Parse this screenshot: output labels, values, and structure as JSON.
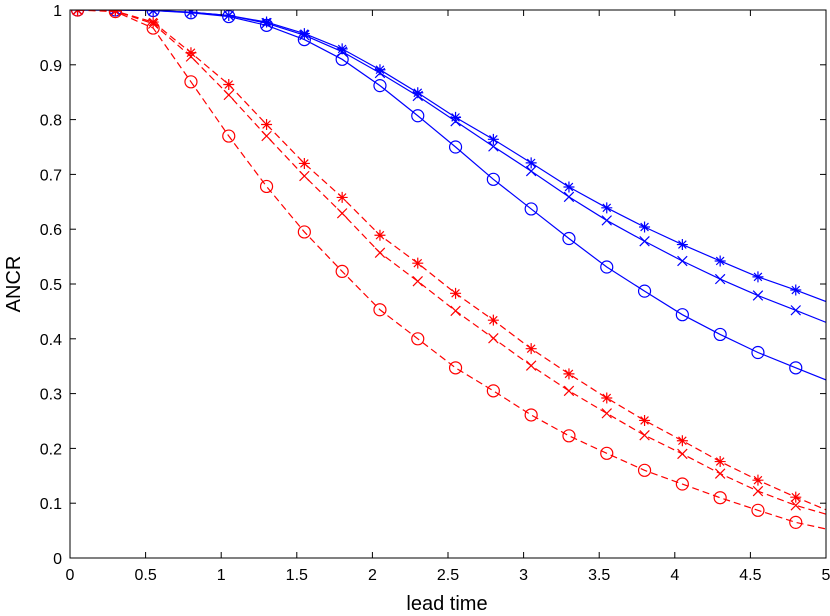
{
  "chart_data": {
    "type": "line",
    "title": "",
    "xlabel": "lead time",
    "ylabel": "ANCR",
    "xlim": [
      0,
      5
    ],
    "ylim": [
      0,
      1
    ],
    "xticks": [
      0,
      0.5,
      1,
      1.5,
      2,
      2.5,
      3,
      3.5,
      4,
      4.5,
      5
    ],
    "yticks": [
      0,
      0.1,
      0.2,
      0.3,
      0.4,
      0.5,
      0.6,
      0.7,
      0.8,
      0.9,
      1
    ],
    "xtick_labels": [
      "0",
      "0.5",
      "1",
      "1.5",
      "2",
      "2.5",
      "3",
      "3.5",
      "4",
      "4.5",
      "5"
    ],
    "ytick_labels": [
      "0",
      "0.1",
      "0.2",
      "0.3",
      "0.4",
      "0.5",
      "0.6",
      "0.7",
      "0.8",
      "0.9",
      "1"
    ],
    "grid": false,
    "legend": "none",
    "series": [
      {
        "color": "#0000ff",
        "line_style": "solid",
        "marker": "circle",
        "x": [
          0.05,
          0.3,
          0.55,
          0.8,
          1.05,
          1.3,
          1.55,
          1.8,
          2.05,
          2.3,
          2.55,
          2.8,
          3.05,
          3.3,
          3.55,
          3.8,
          4.05,
          4.3,
          4.55,
          4.8,
          5.0
        ],
        "values": [
          1.0,
          1.0,
          0.999,
          0.995,
          0.988,
          0.972,
          0.946,
          0.91,
          0.862,
          0.807,
          0.75,
          0.691,
          0.637,
          0.583,
          0.531,
          0.487,
          0.444,
          0.408,
          0.375,
          0.347,
          0.325
        ]
      },
      {
        "color": "#0000ff",
        "line_style": "solid",
        "marker": "x",
        "x": [
          0.05,
          0.3,
          0.55,
          0.8,
          1.05,
          1.3,
          1.55,
          1.8,
          2.05,
          2.3,
          2.55,
          2.8,
          3.05,
          3.3,
          3.55,
          3.8,
          4.05,
          4.3,
          4.55,
          4.8,
          5.0
        ],
        "values": [
          1.0,
          1.0,
          0.999,
          0.996,
          0.99,
          0.976,
          0.954,
          0.924,
          0.885,
          0.843,
          0.797,
          0.751,
          0.706,
          0.659,
          0.616,
          0.578,
          0.542,
          0.509,
          0.479,
          0.452,
          0.43
        ]
      },
      {
        "color": "#0000ff",
        "line_style": "solid",
        "marker": "star",
        "x": [
          0.05,
          0.3,
          0.55,
          0.8,
          1.05,
          1.3,
          1.55,
          1.8,
          2.05,
          2.3,
          2.55,
          2.8,
          3.05,
          3.3,
          3.55,
          3.8,
          4.05,
          4.3,
          4.55,
          4.8,
          5.0
        ],
        "values": [
          1.0,
          1.0,
          0.999,
          0.996,
          0.99,
          0.978,
          0.957,
          0.929,
          0.891,
          0.849,
          0.804,
          0.764,
          0.721,
          0.677,
          0.639,
          0.604,
          0.572,
          0.542,
          0.513,
          0.489,
          0.468
        ]
      },
      {
        "color": "#ff0000",
        "line_style": "dashed",
        "marker": "circle",
        "x": [
          0.05,
          0.3,
          0.55,
          0.8,
          1.05,
          1.3,
          1.55,
          1.8,
          2.05,
          2.3,
          2.55,
          2.8,
          3.05,
          3.3,
          3.55,
          3.8,
          4.05,
          4.3,
          4.55,
          4.8,
          5.0
        ],
        "values": [
          1.0,
          0.997,
          0.967,
          0.869,
          0.77,
          0.678,
          0.595,
          0.523,
          0.453,
          0.4,
          0.347,
          0.305,
          0.261,
          0.223,
          0.191,
          0.16,
          0.135,
          0.11,
          0.087,
          0.065,
          0.053
        ]
      },
      {
        "color": "#ff0000",
        "line_style": "dashed",
        "marker": "x",
        "x": [
          0.05,
          0.3,
          0.55,
          0.8,
          1.05,
          1.3,
          1.55,
          1.8,
          2.05,
          2.3,
          2.55,
          2.8,
          3.05,
          3.3,
          3.55,
          3.8,
          4.05,
          4.3,
          4.55,
          4.8,
          5.0
        ],
        "values": [
          1.0,
          0.998,
          0.975,
          0.915,
          0.845,
          0.77,
          0.697,
          0.629,
          0.557,
          0.505,
          0.451,
          0.401,
          0.351,
          0.305,
          0.264,
          0.224,
          0.19,
          0.154,
          0.122,
          0.096,
          0.08
        ]
      },
      {
        "color": "#ff0000",
        "line_style": "dashed",
        "marker": "star",
        "x": [
          0.05,
          0.3,
          0.55,
          0.8,
          1.05,
          1.3,
          1.55,
          1.8,
          2.05,
          2.3,
          2.55,
          2.8,
          3.05,
          3.3,
          3.55,
          3.8,
          4.05,
          4.3,
          4.55,
          4.8,
          5.0
        ],
        "values": [
          1.0,
          0.998,
          0.978,
          0.922,
          0.864,
          0.791,
          0.72,
          0.658,
          0.589,
          0.538,
          0.483,
          0.434,
          0.382,
          0.336,
          0.292,
          0.251,
          0.214,
          0.176,
          0.142,
          0.111,
          0.088
        ]
      }
    ]
  }
}
